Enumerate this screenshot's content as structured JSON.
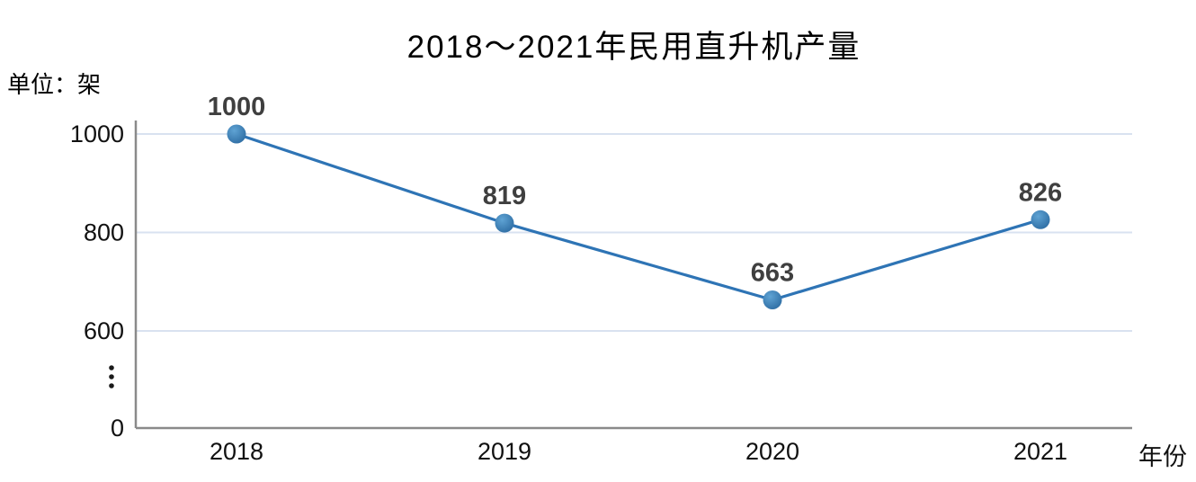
{
  "chart_data": {
    "type": "line",
    "title": "2018～2021年民用直升机产量",
    "unit_label": "单位：架",
    "xlabel": "年份",
    "ylabel": "",
    "categories": [
      "2018",
      "2019",
      "2020",
      "2021"
    ],
    "values": [
      1000,
      819,
      663,
      826
    ],
    "point_labels": [
      "1000",
      "819",
      "663",
      "826"
    ],
    "y_ticks": [
      1000,
      800,
      600,
      0
    ],
    "axis_break_symbol": "⋮",
    "gridlines": true,
    "legend": false,
    "colors": {
      "line": "#2E74B5",
      "marker_light": "#5FA3D4",
      "marker_dark": "#2E6DA3",
      "grid": "#D9E2F0",
      "axis": "#8A8A8A",
      "data_label": "#3F3F3F",
      "tick_text": "#111111"
    }
  }
}
